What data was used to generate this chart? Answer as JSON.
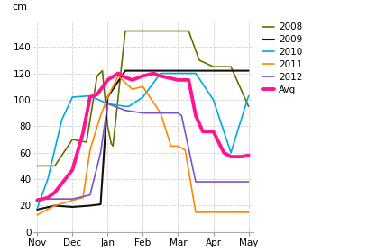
{
  "title": "cm",
  "xlim_labels": [
    "Nov",
    "Dec",
    "Jan",
    "Feb",
    "Mar",
    "Apr",
    "May"
  ],
  "ylim": [
    0,
    160
  ],
  "yticks": [
    0,
    20,
    40,
    60,
    80,
    100,
    120,
    140
  ],
  "series": {
    "2008": {
      "color": "#6b6b00",
      "linewidth": 1.2,
      "x": [
        0,
        0.5,
        1.0,
        1.4,
        1.7,
        1.85,
        2.0,
        2.1,
        2.15,
        2.5,
        3.0,
        3.5,
        4.0,
        4.3,
        4.6,
        5.0,
        5.5,
        6.0
      ],
      "y": [
        50,
        50,
        70,
        68,
        118,
        122,
        80,
        67,
        65,
        152,
        152,
        152,
        152,
        152,
        130,
        125,
        125,
        95
      ]
    },
    "2009": {
      "color": "#111111",
      "linewidth": 1.5,
      "x": [
        0,
        0.5,
        1.0,
        1.5,
        1.8,
        2.0,
        2.5,
        3.0,
        3.5,
        4.0,
        4.5,
        5.0,
        5.5,
        6.0
      ],
      "y": [
        17,
        20,
        19,
        20,
        21,
        102,
        122,
        122,
        122,
        122,
        122,
        122,
        122,
        122
      ]
    },
    "2010": {
      "color": "#00aadd",
      "linewidth": 1.2,
      "x": [
        0,
        0.3,
        0.7,
        1.0,
        1.5,
        2.0,
        2.5,
        2.6,
        3.0,
        3.5,
        4.0,
        4.5,
        5.0,
        5.5,
        6.0
      ],
      "y": [
        18,
        40,
        85,
        102,
        103,
        97,
        95,
        95,
        102,
        120,
        120,
        120,
        100,
        60,
        103
      ]
    },
    "2011": {
      "color": "#ff8800",
      "linewidth": 1.2,
      "x": [
        0,
        0.5,
        1.0,
        1.3,
        1.5,
        1.8,
        2.0,
        2.3,
        2.5,
        2.7,
        3.0,
        3.5,
        3.8,
        4.0,
        4.2,
        4.5,
        5.0,
        5.5,
        6.0
      ],
      "y": [
        13,
        20,
        24,
        26,
        62,
        88,
        102,
        118,
        113,
        108,
        110,
        90,
        65,
        65,
        62,
        15,
        15,
        15,
        15
      ]
    },
    "2012": {
      "color": "#7755cc",
      "linewidth": 1.2,
      "x": [
        0,
        0.5,
        1.0,
        1.5,
        1.8,
        2.0,
        2.5,
        3.0,
        3.5,
        4.0,
        4.1,
        4.5,
        5.0,
        5.5,
        6.0
      ],
      "y": [
        25,
        25,
        25,
        28,
        60,
        97,
        92,
        90,
        90,
        90,
        88,
        38,
        38,
        38,
        38
      ]
    },
    "Avg": {
      "color": "#ff1493",
      "linewidth": 2.8,
      "x": [
        0,
        0.3,
        0.5,
        1.0,
        1.3,
        1.5,
        1.7,
        2.0,
        2.3,
        2.5,
        2.7,
        3.0,
        3.3,
        3.5,
        4.0,
        4.3,
        4.5,
        4.7,
        5.0,
        5.3,
        5.5,
        5.8,
        6.0
      ],
      "y": [
        24,
        26,
        30,
        47,
        75,
        102,
        104,
        115,
        120,
        117,
        115,
        118,
        120,
        118,
        115,
        115,
        88,
        76,
        76,
        60,
        57,
        57,
        58
      ]
    }
  },
  "legend_order": [
    "2008",
    "2009",
    "2010",
    "2011",
    "2012",
    "Avg"
  ],
  "background_color": "#ffffff",
  "grid_color": "#cccccc"
}
